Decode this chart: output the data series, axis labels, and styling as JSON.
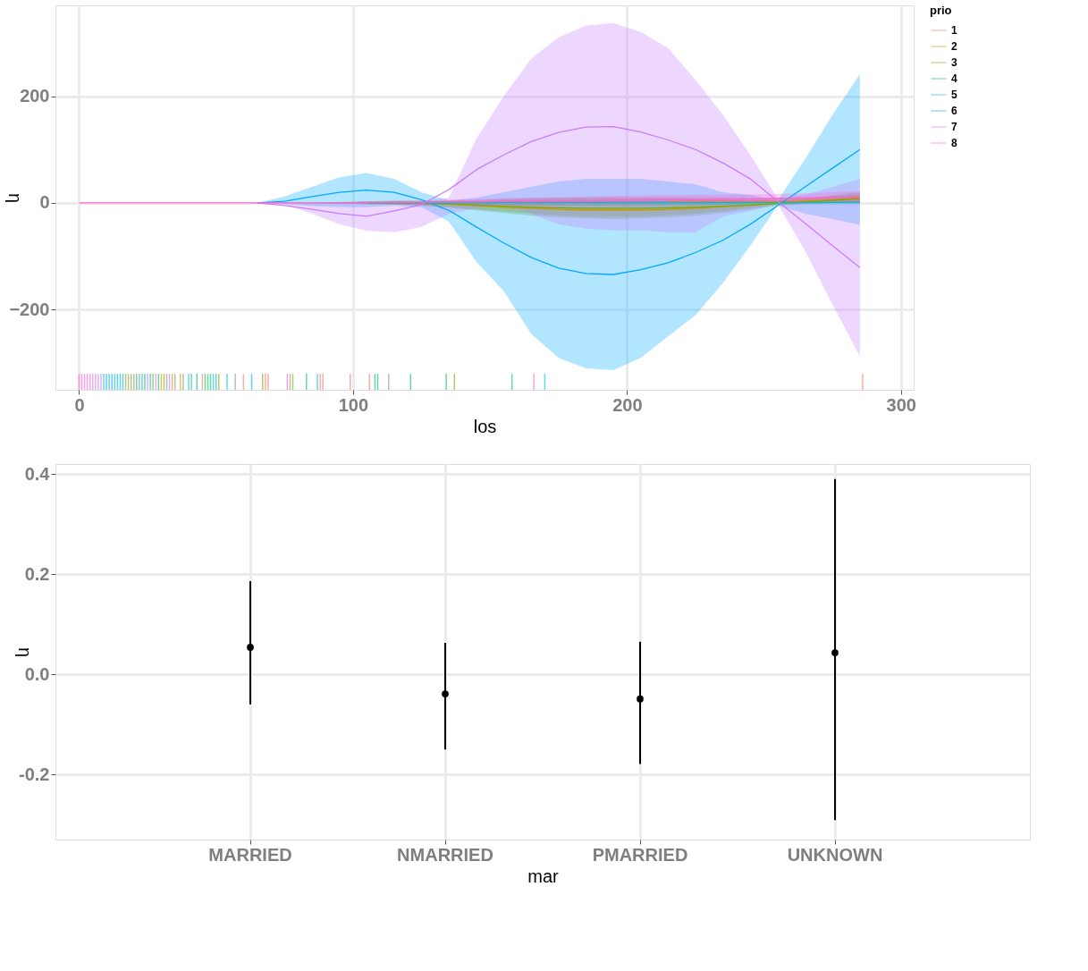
{
  "chart_data": [
    {
      "type": "line",
      "xlabel": "los",
      "ylabel": "η",
      "legend_title": "prio",
      "legend": "right",
      "grid": true,
      "x": [
        0,
        65,
        75,
        85,
        95,
        105,
        115,
        125,
        135,
        145,
        155,
        165,
        175,
        185,
        195,
        205,
        215,
        225,
        235,
        245,
        255,
        265,
        275,
        285
      ],
      "xlim": [
        -7,
        303
      ],
      "xticks": [
        0,
        100,
        200,
        300
      ],
      "ylim": [
        -350,
        370
      ],
      "yticks": [
        -200,
        0,
        200
      ],
      "series": [
        {
          "name": "1",
          "color": "#f8766d",
          "values": [
            null,
            null,
            null,
            null,
            null,
            null,
            null,
            null,
            null,
            null,
            null,
            null,
            null,
            null,
            null,
            null,
            3,
            4,
            4,
            4,
            4,
            5,
            6,
            7
          ],
          "lower": [
            0,
            0,
            0,
            0,
            0,
            0,
            -1,
            -2,
            -3,
            -4,
            -5,
            -5,
            -5,
            -5,
            -5,
            -5,
            -4,
            -4,
            -3,
            -2,
            -1,
            -1,
            0,
            0
          ],
          "upper": [
            0,
            0,
            0,
            0,
            0,
            1,
            2,
            3,
            4,
            6,
            7,
            9,
            10,
            10,
            11,
            11,
            11,
            11,
            11,
            10,
            10,
            11,
            12,
            14
          ]
        },
        {
          "name": "2",
          "color": "#cd9600",
          "values": [
            null,
            null,
            null,
            null,
            null,
            null,
            null,
            0,
            -2,
            -5,
            -8,
            -10,
            -12,
            -13,
            -13,
            -13,
            -12,
            -10,
            -7,
            -4,
            0,
            3,
            6,
            9
          ],
          "lower": [
            0,
            0,
            0,
            0,
            -1,
            -2,
            -3,
            -5,
            -8,
            -12,
            -16,
            -20,
            -23,
            -25,
            -26,
            -25,
            -23,
            -20,
            -15,
            -9,
            -3,
            -1,
            0,
            1
          ],
          "upper": [
            0,
            0,
            0,
            0,
            2,
            3,
            4,
            4,
            3,
            2,
            0,
            0,
            -1,
            -2,
            -1,
            -1,
            -1,
            0,
            1,
            2,
            3,
            8,
            13,
            18
          ]
        },
        {
          "name": "3",
          "color": "#7cae00",
          "values": [
            null,
            null,
            null,
            null,
            null,
            null,
            null,
            -1,
            -2,
            -4,
            -6,
            -8,
            -9,
            -10,
            -10,
            -10,
            -9,
            -8,
            -6,
            -4,
            -1,
            2,
            5,
            8
          ],
          "lower": [
            0,
            0,
            0,
            0,
            -1,
            -2,
            -3,
            -5,
            -9,
            -14,
            -19,
            -24,
            -27,
            -29,
            -30,
            -29,
            -27,
            -24,
            -19,
            -12,
            -5,
            -2,
            0,
            1
          ],
          "upper": [
            0,
            0,
            0,
            0,
            1,
            2,
            3,
            3,
            4,
            5,
            7,
            8,
            9,
            9,
            9,
            9,
            9,
            8,
            7,
            5,
            3,
            8,
            14,
            20
          ]
        },
        {
          "name": "4",
          "color": "#00be67",
          "values": [
            null,
            null,
            null,
            null,
            null,
            0,
            0,
            0,
            0,
            null,
            null,
            null,
            null,
            null,
            null,
            null,
            null,
            null,
            null,
            null,
            null,
            null,
            null,
            null
          ],
          "lower": [
            0,
            0,
            0,
            0,
            -1,
            -1,
            -2,
            -2,
            -3,
            -3,
            -4,
            -4,
            -4,
            -4,
            -4,
            -4,
            -4,
            -4,
            -3,
            -3,
            -2,
            -2,
            -2,
            -2
          ],
          "upper": [
            0,
            0,
            0,
            0,
            1,
            1,
            2,
            2,
            3,
            3,
            4,
            4,
            4,
            4,
            4,
            4,
            4,
            4,
            3,
            3,
            2,
            4,
            5,
            6
          ]
        },
        {
          "name": "5",
          "color": "#00bfc4",
          "values": [
            null,
            null,
            null,
            null,
            null,
            null,
            null,
            0,
            0,
            0,
            1,
            1,
            1,
            1,
            1,
            1,
            1,
            1,
            1,
            1,
            1,
            1,
            1,
            1
          ]
        },
        {
          "name": "6",
          "color": "#00a9ff",
          "values": [
            null,
            0,
            3,
            12,
            20,
            24,
            20,
            6,
            -14,
            -45,
            -75,
            -102,
            -122,
            -132,
            -134,
            -125,
            -112,
            -93,
            -70,
            -40,
            -5,
            30,
            65,
            100
          ],
          "lower": [
            0,
            0,
            -2,
            -6,
            -8,
            -8,
            -5,
            -8,
            -35,
            -110,
            -165,
            -245,
            -290,
            -310,
            -313,
            -290,
            -250,
            -210,
            -150,
            -80,
            -5,
            -20,
            -30,
            -41
          ],
          "upper": [
            0,
            0,
            12,
            30,
            48,
            56,
            45,
            20,
            5,
            10,
            20,
            30,
            40,
            45,
            45,
            45,
            40,
            35,
            20,
            15,
            5,
            82,
            165,
            241
          ]
        },
        {
          "name": "7",
          "color": "#c77cff",
          "values": [
            null,
            0,
            -5,
            -12,
            -20,
            -25,
            -15,
            -3,
            25,
            62,
            90,
            115,
            132,
            142,
            143,
            133,
            118,
            100,
            75,
            45,
            3,
            -38,
            -80,
            -121
          ],
          "lower": [
            0,
            0,
            -3,
            -20,
            -40,
            -52,
            -55,
            -45,
            -20,
            -10,
            -5,
            -20,
            -40,
            -48,
            -51,
            -51,
            -55,
            -55,
            -25,
            -15,
            -2,
            -90,
            -190,
            -287
          ],
          "upper": [
            0,
            0,
            0,
            0,
            0,
            3,
            3,
            3,
            10,
            120,
            200,
            270,
            310,
            332,
            337,
            320,
            290,
            230,
            165,
            90,
            8,
            15,
            30,
            45
          ]
        },
        {
          "name": "8",
          "color": "#ff61cc",
          "values": [
            0,
            0,
            0,
            0,
            0,
            1,
            1,
            1,
            2,
            2,
            3,
            3,
            4,
            4,
            5,
            5,
            6,
            6,
            7,
            7,
            8,
            9,
            10,
            11
          ],
          "lower": [
            0,
            0,
            0,
            0,
            -1,
            -2,
            -2,
            -3,
            -3,
            -3,
            -3,
            -3,
            -3,
            -2,
            -2,
            -2,
            -1,
            -1,
            0,
            0,
            1,
            1,
            1,
            1
          ],
          "upper": [
            0,
            0,
            0,
            0,
            1,
            3,
            4,
            5,
            6,
            7,
            9,
            10,
            11,
            12,
            13,
            14,
            14,
            15,
            16,
            16,
            17,
            18,
            20,
            22
          ]
        },
        {
          "type": "bar",
          "color": "#ff61cc",
          "x": [
            0,
            1,
            2,
            3,
            4,
            76,
            166
          ],
          "base": [
            -350,
            -350,
            -350,
            -350,
            -350,
            -350,
            -350
          ],
          "values": [
            30,
            30,
            30,
            30,
            30,
            30,
            30
          ]
        },
        {
          "type": "bar",
          "color": "#c77cff",
          "x": [
            5,
            6,
            7,
            8,
            25,
            28,
            33
          ],
          "base": [
            -350,
            -350,
            -350,
            -350,
            -350,
            -350,
            -350
          ],
          "values": [
            30,
            30,
            30,
            30,
            30,
            30,
            30
          ]
        },
        {
          "type": "bar",
          "color": "#00bfc4",
          "x": [
            9,
            11,
            13,
            15,
            23,
            26,
            40,
            41,
            49,
            50,
            54,
            87,
            170
          ],
          "base": [
            -350,
            -350,
            -350,
            -350,
            -350,
            -350,
            -350,
            -350,
            -350,
            -350,
            -350,
            -350,
            -350
          ],
          "values": [
            30,
            30,
            30,
            30,
            30,
            30,
            30,
            30,
            30,
            30,
            30,
            30,
            30
          ]
        },
        {
          "type": "bar",
          "color": "#00a9ff",
          "x": [
            10,
            12,
            14,
            16,
            63
          ],
          "base": [
            -350,
            -350,
            -350,
            -350,
            -350
          ],
          "values": [
            30,
            30,
            30,
            30,
            30
          ]
        },
        {
          "type": "bar",
          "color": "#7cae00",
          "x": [
            17,
            19,
            27,
            31,
            51,
            67,
            78,
            137
          ],
          "base": [
            -350,
            -350,
            -350,
            -350,
            -350,
            -350,
            -350,
            -350
          ],
          "values": [
            30,
            30,
            30,
            30,
            30,
            30,
            30,
            30
          ]
        },
        {
          "type": "bar",
          "color": "#909090",
          "x": [
            18,
            20,
            22,
            32,
            35,
            38,
            57,
            77,
            113
          ],
          "base": [
            -350,
            -350,
            -350,
            -350,
            -350,
            -350,
            -350,
            -350,
            -350
          ],
          "values": [
            30,
            30,
            30,
            30,
            30,
            30,
            30,
            30,
            30
          ]
        },
        {
          "type": "bar",
          "color": "#00be67",
          "x": [
            21,
            24,
            29,
            43,
            46,
            47,
            48,
            83,
            108,
            109,
            121,
            134,
            158
          ],
          "base": [
            -350,
            -350,
            -350,
            -350,
            -350,
            -350,
            -350,
            -350,
            -350,
            -350,
            -350,
            -350,
            -350
          ],
          "values": [
            30,
            30,
            30,
            30,
            30,
            30,
            30,
            30,
            30,
            30,
            30,
            30,
            30
          ]
        },
        {
          "type": "bar",
          "color": "#cd9600",
          "x": [
            30,
            34,
            37
          ],
          "base": [
            -350,
            -350,
            -350
          ],
          "values": [
            30,
            30,
            30
          ]
        },
        {
          "type": "bar",
          "color": "#f8766d",
          "x": [
            45,
            60,
            68,
            69,
            88,
            89,
            99,
            106,
            286
          ],
          "base": [
            -350,
            -350,
            -350,
            -350,
            -350,
            -350,
            -350,
            -350,
            -350
          ],
          "values": [
            30,
            30,
            30,
            30,
            30,
            30,
            30,
            30,
            30
          ]
        }
      ]
    },
    {
      "type": "scatter",
      "xlabel": "mar",
      "ylabel": "η",
      "grid": true,
      "marker": "circle",
      "categories": [
        "MARRIED",
        "NMARRIED",
        "PMARRIED",
        "UNKNOWN"
      ],
      "values": [
        0.054,
        -0.039,
        -0.049,
        0.043
      ],
      "errors": [
        [
          -0.06,
          0.186
        ],
        [
          -0.15,
          0.063
        ],
        [
          -0.179,
          0.065
        ],
        [
          -0.291,
          0.39
        ]
      ],
      "color": "#000000",
      "ylim": [
        -0.33,
        0.42
      ],
      "yticks": [
        {
          "value": -0.2,
          "label": "-0.2"
        },
        {
          "value": 0,
          "label": "0.0"
        },
        {
          "value": 0.2,
          "label": "0.2"
        },
        {
          "value": 0.4,
          "label": "0.4"
        }
      ]
    }
  ]
}
